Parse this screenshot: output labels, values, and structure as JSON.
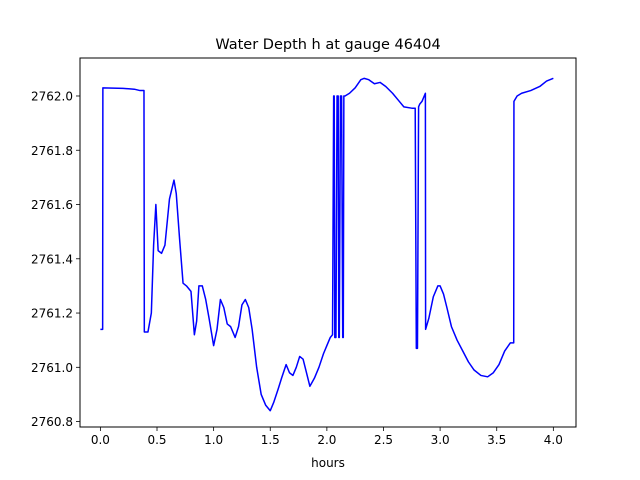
{
  "chart_data": {
    "type": "line",
    "title": "Water Depth h at gauge 46404",
    "xlabel": "hours",
    "ylabel": "",
    "xlim": [
      -0.18,
      4.2
    ],
    "ylim": [
      2760.78,
      2762.14
    ],
    "xticks": [
      0.0,
      0.5,
      1.0,
      1.5,
      2.0,
      2.5,
      3.0,
      3.5,
      4.0
    ],
    "xtick_labels": [
      "0.0",
      "0.5",
      "1.0",
      "1.5",
      "2.0",
      "2.5",
      "3.0",
      "3.5",
      "4.0"
    ],
    "yticks": [
      2760.8,
      2761.0,
      2761.2,
      2761.4,
      2761.6,
      2761.8,
      2762.0
    ],
    "ytick_labels": [
      "2760.8",
      "2761.0",
      "2761.2",
      "2761.4",
      "2761.6",
      "2761.8",
      "2762.0"
    ],
    "grid": false,
    "colors": {
      "line": "#0000ff"
    },
    "series": [
      {
        "name": "",
        "x": [
          0.0,
          0.02,
          0.022,
          0.2,
          0.3,
          0.35,
          0.385,
          0.388,
          0.42,
          0.45,
          0.47,
          0.49,
          0.51,
          0.54,
          0.57,
          0.61,
          0.65,
          0.67,
          0.7,
          0.73,
          0.76,
          0.8,
          0.83,
          0.85,
          0.87,
          0.9,
          0.93,
          0.96,
          1.0,
          1.03,
          1.06,
          1.09,
          1.12,
          1.15,
          1.19,
          1.22,
          1.25,
          1.28,
          1.31,
          1.34,
          1.38,
          1.42,
          1.46,
          1.5,
          1.53,
          1.57,
          1.6,
          1.64,
          1.67,
          1.7,
          1.73,
          1.76,
          1.79,
          1.82,
          1.85,
          1.89,
          1.93,
          1.97,
          2.0,
          2.03,
          2.05,
          2.06,
          2.065,
          2.07,
          2.08,
          2.09,
          2.1,
          2.105,
          2.11,
          2.12,
          2.13,
          2.14,
          2.145,
          2.15,
          2.16,
          2.2,
          2.25,
          2.3,
          2.33,
          2.37,
          2.42,
          2.47,
          2.52,
          2.58,
          2.63,
          2.68,
          2.75,
          2.78,
          2.79,
          2.8,
          2.81,
          2.82,
          2.84,
          2.87,
          2.872,
          2.9,
          2.94,
          2.98,
          3.0,
          3.03,
          3.06,
          3.1,
          3.15,
          3.2,
          3.25,
          3.3,
          3.36,
          3.42,
          3.47,
          3.52,
          3.57,
          3.62,
          3.65,
          3.652,
          3.68,
          3.72,
          3.8,
          3.88,
          3.94,
          4.0
        ],
        "y": [
          2761.14,
          2761.14,
          2762.03,
          2762.028,
          2762.025,
          2762.02,
          2762.02,
          2761.13,
          2761.13,
          2761.2,
          2761.45,
          2761.6,
          2761.43,
          2761.42,
          2761.45,
          2761.62,
          2761.69,
          2761.64,
          2761.47,
          2761.31,
          2761.3,
          2761.28,
          2761.12,
          2761.17,
          2761.3,
          2761.3,
          2761.25,
          2761.18,
          2761.08,
          2761.14,
          2761.25,
          2761.22,
          2761.16,
          2761.15,
          2761.11,
          2761.15,
          2761.23,
          2761.25,
          2761.22,
          2761.14,
          2761.0,
          2760.9,
          2760.86,
          2760.84,
          2760.87,
          2760.92,
          2760.96,
          2761.01,
          2760.98,
          2760.97,
          2761.0,
          2761.04,
          2761.03,
          2760.98,
          2760.93,
          2760.96,
          2761.0,
          2761.05,
          2761.08,
          2761.11,
          2761.12,
          2762.0,
          2762.0,
          2761.11,
          2761.11,
          2762.0,
          2762.0,
          2761.11,
          2761.11,
          2762.0,
          2762.0,
          2761.11,
          2761.11,
          2762.0,
          2762.0,
          2762.01,
          2762.03,
          2762.06,
          2762.065,
          2762.06,
          2762.045,
          2762.05,
          2762.035,
          2762.01,
          2761.985,
          2761.96,
          2761.955,
          2761.955,
          2761.07,
          2761.07,
          2761.96,
          2761.97,
          2761.98,
          2762.01,
          2761.14,
          2761.18,
          2761.26,
          2761.3,
          2761.3,
          2761.27,
          2761.22,
          2761.15,
          2761.1,
          2761.06,
          2761.02,
          2760.99,
          2760.97,
          2760.965,
          2760.98,
          2761.01,
          2761.06,
          2761.09,
          2761.09,
          2761.98,
          2762.0,
          2762.01,
          2762.02,
          2762.035,
          2762.055,
          2762.065
        ]
      }
    ]
  }
}
